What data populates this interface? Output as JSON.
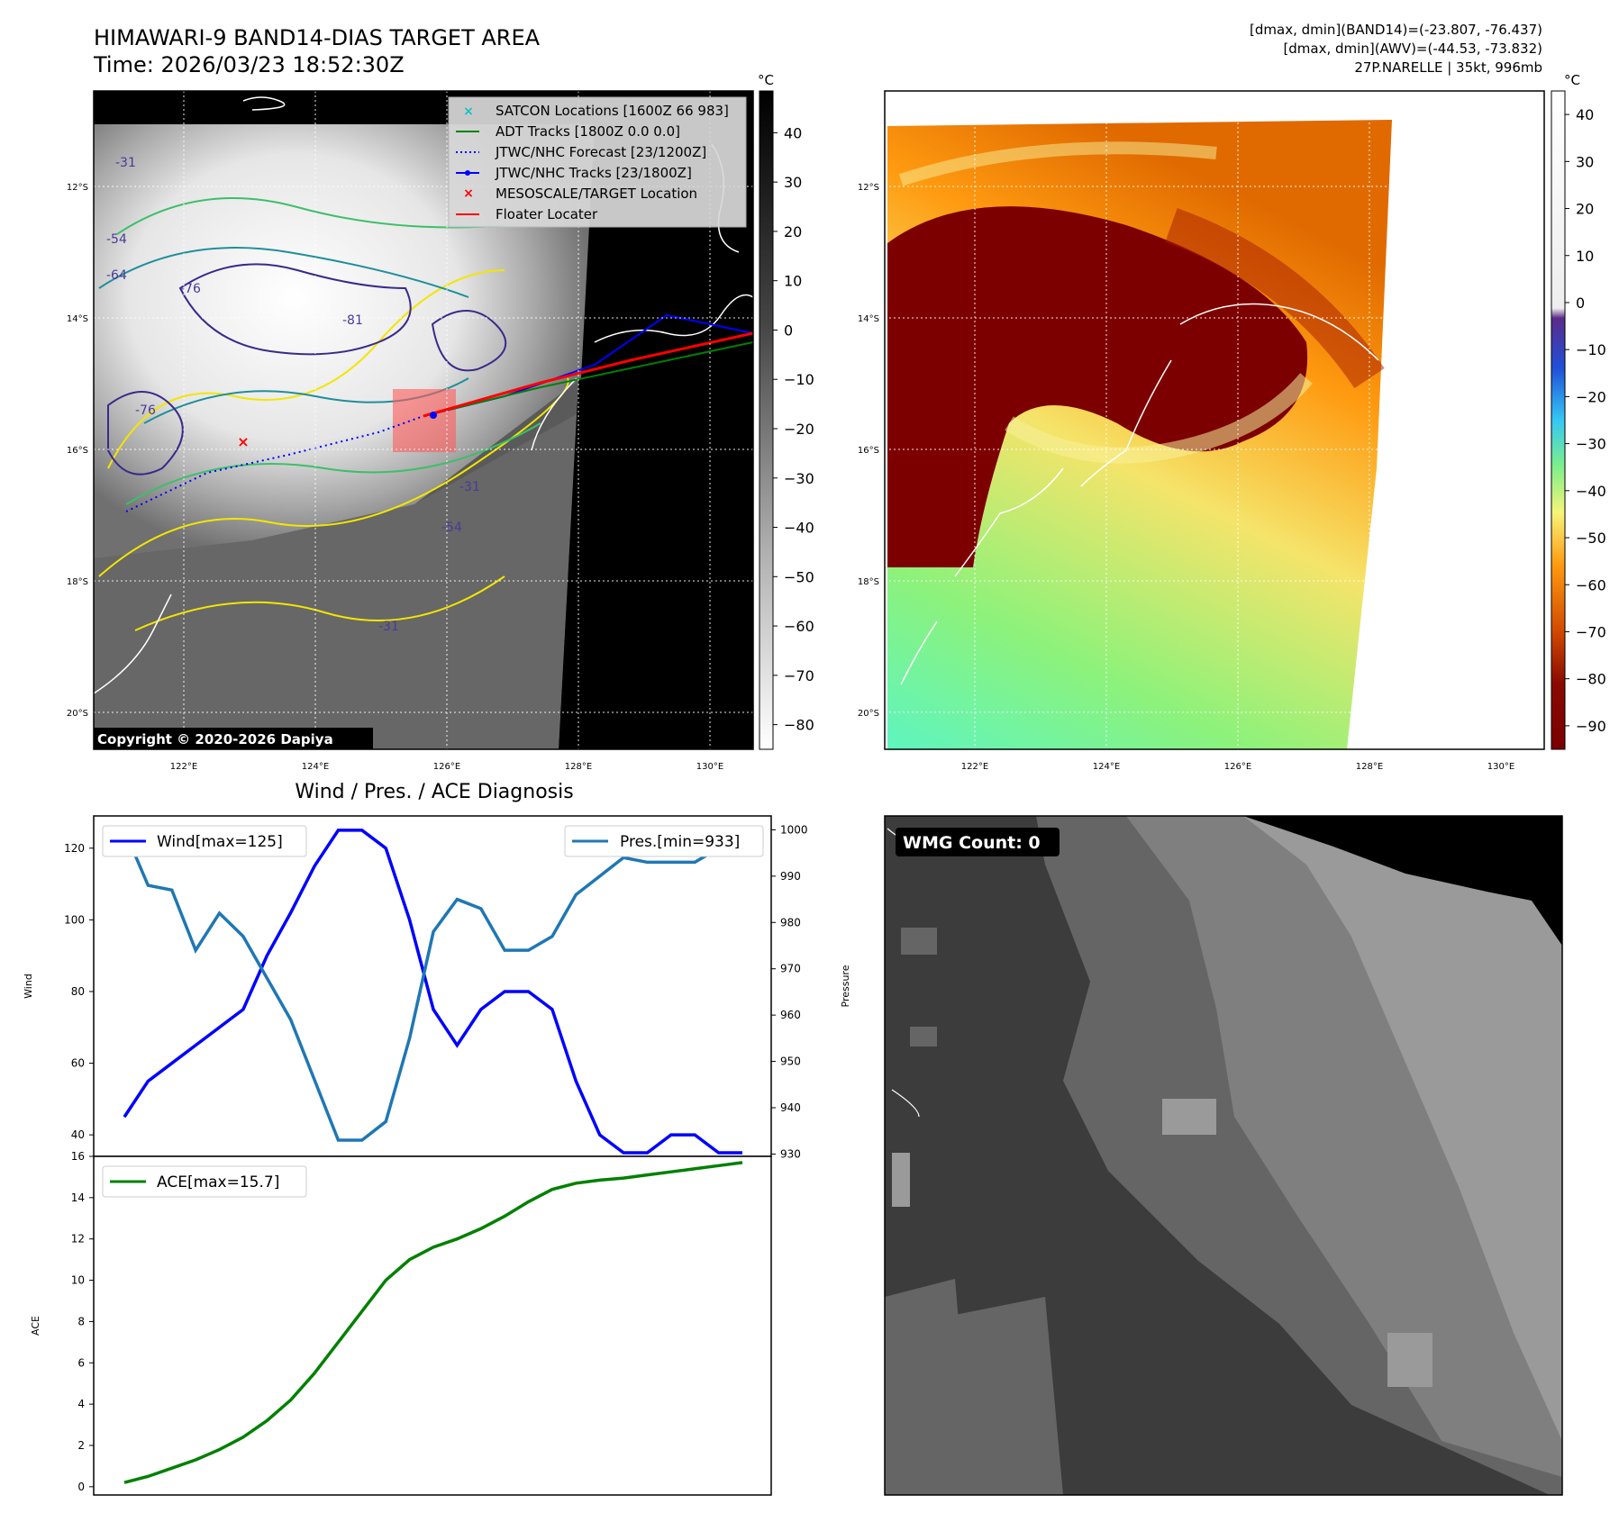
{
  "header": {
    "title_line1": "HIMAWARI-9 BAND14-DIAS TARGET AREA",
    "title_line2": "Time: 2026/03/23 18:52:30Z",
    "right_line1": "[dmax, dmin](BAND14)=(-23.807, -76.437)",
    "right_line2": "[dmax, dmin](AWV)=(-44.53, -73.832)",
    "right_line3": "27P.NARELLE | 35kt, 996mb"
  },
  "maps": {
    "lat_labels": [
      "12°S",
      "14°S",
      "16°S",
      "18°S",
      "20°S"
    ],
    "lon_labels": [
      "122°E",
      "124°E",
      "126°E",
      "128°E",
      "130°E"
    ],
    "copyright": "Copyright © 2020-2026 Dapiya",
    "contour_labels": [
      "-31",
      "-54",
      "-64",
      "-76",
      "-81",
      "-76",
      "-31",
      "-54",
      "-31"
    ],
    "legend": [
      {
        "label": "SATCON Locations [1600Z 66 983]",
        "symbol": "x",
        "color": "#17c0c0"
      },
      {
        "label": "ADT Tracks [1800Z 0.0 0.0]",
        "symbol": "line",
        "color": "#008000"
      },
      {
        "label": "JTWC/NHC Forecast [23/1200Z]",
        "symbol": "dotted",
        "color": "#0000ff"
      },
      {
        "label": "JTWC/NHC Tracks [23/1800Z]",
        "symbol": "line-dot",
        "color": "#0000ff"
      },
      {
        "label": "MESOSCALE/TARGET Location",
        "symbol": "x",
        "color": "#ff0000"
      },
      {
        "label": "Floater Locater",
        "symbol": "line",
        "color": "#ff0000"
      }
    ],
    "gray_colorbar": {
      "unit": "°C",
      "ticks": [
        "40",
        "30",
        "20",
        "10",
        "0",
        "−10",
        "−20",
        "−30",
        "−40",
        "−50",
        "−60",
        "−70",
        "−80"
      ]
    },
    "color_colorbar": {
      "unit": "°C",
      "ticks": [
        "40",
        "30",
        "20",
        "10",
        "0",
        "−10",
        "−20",
        "−30",
        "−40",
        "−50",
        "−60",
        "−70",
        "−80",
        "−90"
      ]
    },
    "wmg_label": "WMG Count: 0"
  },
  "chart_data": [
    {
      "type": "line",
      "title": "Wind / Pres. / ACE Diagnosis",
      "ylabel": "Wind",
      "y2label": "Pressure",
      "ylim": [
        34,
        129
      ],
      "y2lim": [
        929.5,
        1003
      ],
      "yticks": [
        40,
        60,
        80,
        100,
        120
      ],
      "y2ticks": [
        930,
        940,
        950,
        960,
        970,
        980,
        990,
        1000
      ],
      "series": [
        {
          "name": "Wind[max=125]",
          "axis": "left",
          "color": "#0000ff",
          "values": [
            45,
            55,
            60,
            65,
            70,
            75,
            90,
            102,
            115,
            125,
            125,
            120,
            100,
            75,
            65,
            75,
            80,
            80,
            75,
            55,
            40,
            35,
            35,
            40,
            40,
            35,
            35
          ]
        },
        {
          "name": "Pres.[min=933]",
          "axis": "right",
          "color": "#1f77b4",
          "values": [
            1000,
            988,
            987,
            974,
            982,
            977,
            968,
            959,
            946,
            933,
            933,
            937,
            955,
            978,
            985,
            983,
            974,
            974,
            977,
            986,
            990,
            994,
            993,
            993,
            993,
            996,
            998
          ]
        }
      ]
    },
    {
      "type": "line",
      "ylabel": "ACE",
      "ylim": [
        -0.4,
        16
      ],
      "yticks": [
        0,
        2,
        4,
        6,
        8,
        10,
        12,
        14,
        16
      ],
      "series": [
        {
          "name": "ACE[max=15.7]",
          "color": "#008000",
          "values": [
            0.2,
            0.5,
            0.9,
            1.3,
            1.8,
            2.4,
            3.2,
            4.2,
            5.5,
            7.0,
            8.5,
            10.0,
            11.0,
            11.6,
            12.0,
            12.5,
            13.1,
            13.8,
            14.4,
            14.7,
            14.85,
            14.95,
            15.1,
            15.25,
            15.4,
            15.55,
            15.7
          ]
        }
      ]
    }
  ]
}
